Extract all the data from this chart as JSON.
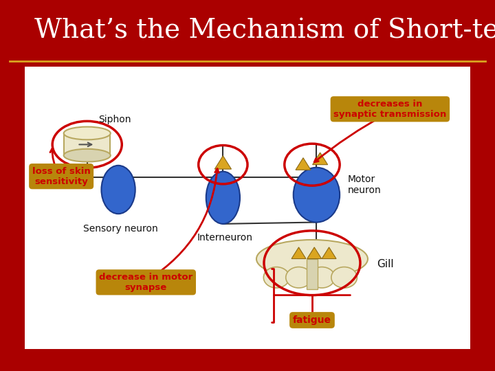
{
  "title": "What’s the Mechanism of Short-term?",
  "title_color": "#FFFFFF",
  "title_fontsize": 28,
  "bg_color": "#AA0000",
  "panel_bg": "#FFFFFF",
  "label_bg": "#B8860B",
  "label_fg": "#CC0000",
  "annotations": {
    "decreases": "decreases in\nsynaptic transmission",
    "loss_skin": "loss of skin\nsensitivity",
    "decrease_motor": "decrease in motor\nsynapse",
    "fatigue": "fatigue"
  },
  "diagram_labels": {
    "siphon": "Siphon",
    "sensory": "Sensory neuron",
    "interneuron": "Interneuron",
    "motor": "Motor\nneuron",
    "gill": "Gill"
  }
}
